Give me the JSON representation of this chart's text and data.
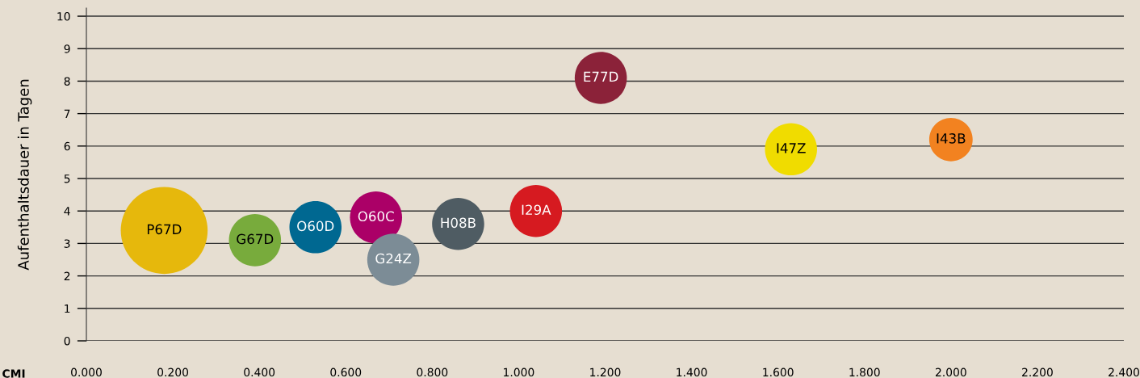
{
  "chart_data": {
    "type": "bubble",
    "xlabel": "CMI",
    "ylabel": "Aufenthaltsdauer in Tagen",
    "xlim": [
      0,
      2.4
    ],
    "ylim": [
      0,
      10.25
    ],
    "xticks": [
      {
        "value": 0,
        "label": "0.000"
      },
      {
        "value": 0.2,
        "label": "0.200"
      },
      {
        "value": 0.4,
        "label": "0.400"
      },
      {
        "value": 0.6,
        "label": "0.600"
      },
      {
        "value": 0.8,
        "label": "0.800"
      },
      {
        "value": 1.0,
        "label": "1.000"
      },
      {
        "value": 1.2,
        "label": "1.200"
      },
      {
        "value": 1.4,
        "label": "1.400"
      },
      {
        "value": 1.6,
        "label": "1.600"
      },
      {
        "value": 1.8,
        "label": "1.800"
      },
      {
        "value": 2.0,
        "label": "2.000"
      },
      {
        "value": 2.2,
        "label": "2.200"
      },
      {
        "value": 2.4,
        "label": "2.400"
      }
    ],
    "yticks": [
      0,
      1,
      2,
      3,
      4,
      5,
      6,
      7,
      8,
      9,
      10
    ],
    "grid": "y",
    "series": [
      {
        "name": "P67D",
        "color": "#e6b80c",
        "x": [
          0.18
        ],
        "values": [
          3.4
        ],
        "sizes": [
          1
        ]
      },
      {
        "name": "G67D",
        "color": "#78ab3c",
        "x": [
          0.39
        ],
        "values": [
          3.1
        ],
        "sizes": [
          0.36
        ]
      },
      {
        "name": "O60D",
        "color": "#006891",
        "x": [
          0.53
        ],
        "values": [
          3.5
        ],
        "sizes": [
          0.36
        ]
      },
      {
        "name": "O60C",
        "color": "#ab0067",
        "x": [
          0.67
        ],
        "values": [
          3.8
        ],
        "sizes": [
          0.36
        ]
      },
      {
        "name": "G24Z",
        "color": "#7c8c96",
        "x": [
          0.71
        ],
        "values": [
          2.5
        ],
        "sizes": [
          0.36
        ]
      },
      {
        "name": "H08B",
        "color": "#4f5c63",
        "x": [
          0.86
        ],
        "values": [
          3.6
        ],
        "sizes": [
          0.36
        ]
      },
      {
        "name": "I29A",
        "color": "#d61a20",
        "x": [
          1.04
        ],
        "values": [
          4.0
        ],
        "sizes": [
          0.36
        ]
      },
      {
        "name": "E77D",
        "color": "#8b2239",
        "x": [
          1.19
        ],
        "values": [
          8.1
        ],
        "sizes": [
          0.36
        ]
      },
      {
        "name": "I47Z",
        "color": "#f0dc00",
        "x": [
          1.63
        ],
        "values": [
          5.9
        ],
        "sizes": [
          0.36
        ]
      },
      {
        "name": "I43B",
        "color": "#f28220",
        "x": [
          2.0
        ],
        "values": [
          6.2
        ],
        "sizes": [
          0.25
        ]
      }
    ]
  }
}
